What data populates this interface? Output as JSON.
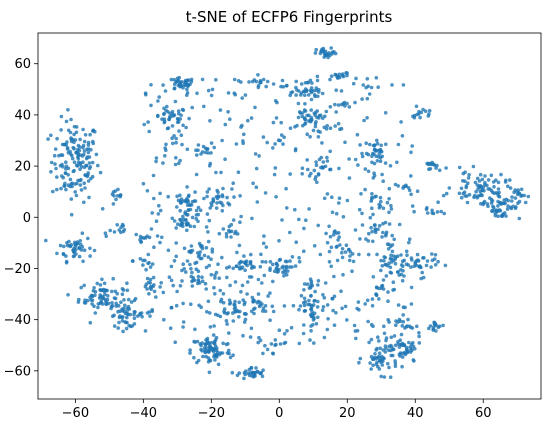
{
  "chart_data": {
    "type": "scatter",
    "title": "t-SNE of ECFP6 Fingerprints",
    "xlabel": "",
    "ylabel": "",
    "xlim": [
      -71,
      77
    ],
    "ylim": [
      -71,
      72
    ],
    "xticks": [
      -60,
      -40,
      -20,
      0,
      20,
      40,
      60
    ],
    "yticks": [
      -60,
      -40,
      -20,
      0,
      20,
      40,
      60
    ],
    "grid": false,
    "legend": "none",
    "point_color": "#1f77b4",
    "clusters": [
      {
        "x": -60,
        "y": 22,
        "sx": 3.5,
        "sy": 8,
        "n": 150
      },
      {
        "x": -60,
        "y": -12,
        "sx": 2.5,
        "sy": 2.5,
        "n": 45
      },
      {
        "x": -52,
        "y": -31,
        "sx": 3.5,
        "sy": 3,
        "n": 75
      },
      {
        "x": -45,
        "y": -38,
        "sx": 2.5,
        "sy": 2.5,
        "n": 50
      },
      {
        "x": -48,
        "y": 7,
        "sx": 2,
        "sy": 2,
        "n": 12
      },
      {
        "x": -48,
        "y": -5,
        "sx": 2,
        "sy": 2,
        "n": 12
      },
      {
        "x": -40,
        "y": -8,
        "sx": 1.5,
        "sy": 1.5,
        "n": 10
      },
      {
        "x": -40,
        "y": -17,
        "sx": 1.5,
        "sy": 1.5,
        "n": 8
      },
      {
        "x": -37,
        "y": -26,
        "sx": 2,
        "sy": 2,
        "n": 14
      },
      {
        "x": -29,
        "y": 52,
        "sx": 2,
        "sy": 1.2,
        "n": 30
      },
      {
        "x": -32,
        "y": 39,
        "sx": 2.5,
        "sy": 2,
        "n": 30
      },
      {
        "x": -30,
        "y": 30,
        "sx": 1.5,
        "sy": 1.5,
        "n": 10
      },
      {
        "x": -27,
        "y": 6,
        "sx": 2,
        "sy": 2,
        "n": 25
      },
      {
        "x": -27,
        "y": 0,
        "sx": 2,
        "sy": 2,
        "n": 30
      },
      {
        "x": -24,
        "y": -15,
        "sx": 3,
        "sy": 2.5,
        "n": 25
      },
      {
        "x": -24,
        "y": -25,
        "sx": 2,
        "sy": 1.5,
        "n": 15
      },
      {
        "x": -23,
        "y": 26,
        "sx": 1.5,
        "sy": 1.5,
        "n": 10
      },
      {
        "x": -18,
        "y": 7,
        "sx": 2,
        "sy": 2,
        "n": 25
      },
      {
        "x": -15,
        "y": -6,
        "sx": 1.5,
        "sy": 1.5,
        "n": 10
      },
      {
        "x": -20,
        "y": -52,
        "sx": 3,
        "sy": 3,
        "n": 80
      },
      {
        "x": -8,
        "y": -61,
        "sx": 2,
        "sy": 1.2,
        "n": 30
      },
      {
        "x": -13,
        "y": -35,
        "sx": 3,
        "sy": 2,
        "n": 35
      },
      {
        "x": -11,
        "y": -19,
        "sx": 2.5,
        "sy": 1.5,
        "n": 20
      },
      {
        "x": -1,
        "y": -20,
        "sx": 2,
        "sy": 1.5,
        "n": 25
      },
      {
        "x": -7,
        "y": -33,
        "sx": 2,
        "sy": 2,
        "n": 15
      },
      {
        "x": -3,
        "y": -51,
        "sx": 1.5,
        "sy": 1.5,
        "n": 10
      },
      {
        "x": -6,
        "y": 53,
        "sx": 1.5,
        "sy": 1.5,
        "n": 12
      },
      {
        "x": 7,
        "y": 50,
        "sx": 3,
        "sy": 2.5,
        "n": 40
      },
      {
        "x": 14,
        "y": 64,
        "sx": 1.5,
        "sy": 1,
        "n": 25
      },
      {
        "x": 18,
        "y": 55,
        "sx": 2,
        "sy": 0.8,
        "n": 15
      },
      {
        "x": 10,
        "y": 38,
        "sx": 3,
        "sy": 2.5,
        "n": 40
      },
      {
        "x": 19,
        "y": 44,
        "sx": 1.5,
        "sy": 0.8,
        "n": 8
      },
      {
        "x": 12,
        "y": 20,
        "sx": 2,
        "sy": 2,
        "n": 15
      },
      {
        "x": 9,
        "y": -36,
        "sx": 2.5,
        "sy": 3.5,
        "n": 40
      },
      {
        "x": 10,
        "y": -26,
        "sx": 1.5,
        "sy": 1.5,
        "n": 10
      },
      {
        "x": 20,
        "y": -15,
        "sx": 2,
        "sy": 1.5,
        "n": 12
      },
      {
        "x": 15,
        "y": -6,
        "sx": 1.5,
        "sy": 1.5,
        "n": 10
      },
      {
        "x": 29,
        "y": 25,
        "sx": 2,
        "sy": 2.5,
        "n": 30
      },
      {
        "x": 30,
        "y": 5,
        "sx": 2,
        "sy": 2,
        "n": 15
      },
      {
        "x": 38,
        "y": 11,
        "sx": 1.5,
        "sy": 1,
        "n": 10
      },
      {
        "x": 28,
        "y": -5,
        "sx": 2,
        "sy": 2,
        "n": 20
      },
      {
        "x": 34,
        "y": -18,
        "sx": 3,
        "sy": 3,
        "n": 45
      },
      {
        "x": 42,
        "y": -18,
        "sx": 2.5,
        "sy": 2.5,
        "n": 30
      },
      {
        "x": 29,
        "y": -30,
        "sx": 1.5,
        "sy": 2,
        "n": 10
      },
      {
        "x": 42,
        "y": 40,
        "sx": 1.5,
        "sy": 1.5,
        "n": 14
      },
      {
        "x": 45,
        "y": 20,
        "sx": 1.5,
        "sy": 1,
        "n": 14
      },
      {
        "x": 45,
        "y": 2,
        "sx": 1.5,
        "sy": 1.5,
        "n": 10
      },
      {
        "x": 30,
        "y": -55,
        "sx": 2.5,
        "sy": 3,
        "n": 50
      },
      {
        "x": 37,
        "y": -52,
        "sx": 2.5,
        "sy": 3,
        "n": 45
      },
      {
        "x": 36,
        "y": -42,
        "sx": 1.5,
        "sy": 1.5,
        "n": 14
      },
      {
        "x": 46,
        "y": -43,
        "sx": 1.5,
        "sy": 1.5,
        "n": 14
      },
      {
        "x": 59,
        "y": 12,
        "sx": 4,
        "sy": 3,
        "n": 70
      },
      {
        "x": 65,
        "y": 5,
        "sx": 3,
        "sy": 3,
        "n": 55
      },
      {
        "x": 70,
        "y": 9,
        "sx": 1.5,
        "sy": 1.5,
        "n": 15
      }
    ],
    "scattered": {
      "n": 500,
      "xrange": [
        -40,
        40
      ],
      "yrange": [
        -50,
        55
      ]
    }
  }
}
